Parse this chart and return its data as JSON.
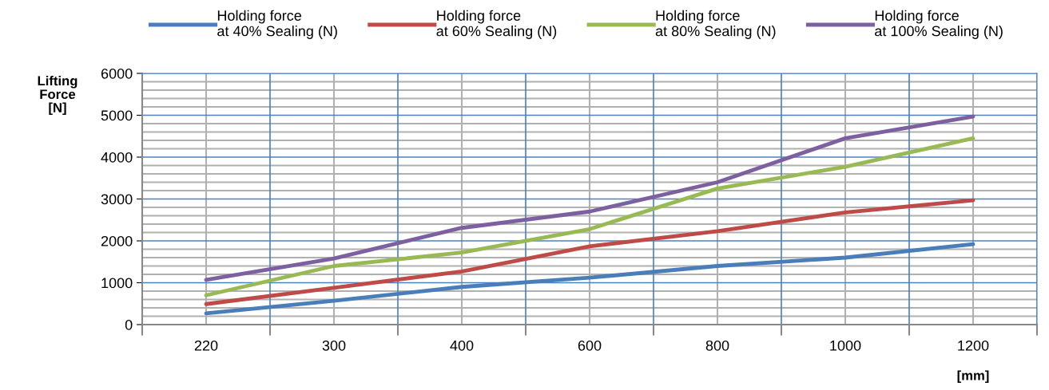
{
  "chart_data": {
    "type": "line",
    "ylabel": "Lifting\nForce\n[N]",
    "xlabel": "[mm]",
    "categories": [
      "220",
      "300",
      "400",
      "600",
      "800",
      "1000",
      "1200"
    ],
    "series": [
      {
        "name": "Holding force\nat 40% Sealing (N)",
        "color": "#4a7ebb",
        "values": [
          270,
          570,
          900,
          1120,
          1400,
          1600,
          1920
        ]
      },
      {
        "name": "Holding force\nat 60% Sealing (N)",
        "color": "#be4b48",
        "values": [
          490,
          880,
          1270,
          1870,
          2230,
          2680,
          2970
        ]
      },
      {
        "name": "Holding force\nat 80% Sealing (N)",
        "color": "#98b954",
        "values": [
          700,
          1400,
          1720,
          2280,
          3250,
          3770,
          4450
        ]
      },
      {
        "name": "Holding force\nat 100% Sealing (N)",
        "color": "#7d60a0",
        "values": [
          1070,
          1580,
          2310,
          2700,
          3400,
          4450,
          4970
        ]
      }
    ],
    "ylim": [
      0,
      6000
    ],
    "yticks": [
      0,
      1000,
      2000,
      3000,
      4000,
      5000,
      6000
    ],
    "grid": true,
    "legend": "top",
    "marker": "none",
    "line_style": "solid"
  }
}
